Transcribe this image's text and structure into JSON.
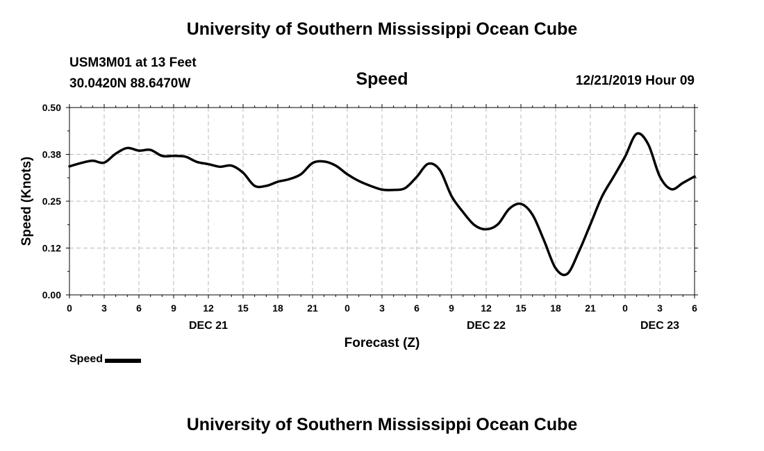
{
  "header": {
    "title": "University of Southern Mississippi Ocean Cube",
    "station_line1": "USM3M01 at 13 Feet",
    "station_line2": "30.0420N 88.6470W",
    "chart_title": "Speed",
    "timestamp": "12/21/2019 Hour 09"
  },
  "footer": {
    "title": "University of Southern Mississippi Ocean Cube"
  },
  "legend": {
    "label": "Speed"
  },
  "chart_data": {
    "type": "line",
    "title": "Speed",
    "xlabel": "Forecast (Z)",
    "ylabel": "Speed (Knots)",
    "xlim": [
      0,
      54
    ],
    "ylim": [
      0,
      0.5
    ],
    "y_ticks": [
      "0.00",
      "0.12",
      "0.25",
      "0.38",
      "0.50"
    ],
    "x_tick_labels": [
      "0",
      "3",
      "6",
      "9",
      "12",
      "15",
      "18",
      "21",
      "0",
      "3",
      "6",
      "9",
      "12",
      "15",
      "18",
      "21",
      "0",
      "3",
      "6"
    ],
    "day_labels": [
      {
        "label": "DEC 21",
        "hour": 12
      },
      {
        "label": "DEC 22",
        "hour": 36
      },
      {
        "label": "DEC 23",
        "hour": 51
      }
    ],
    "grid": true,
    "series": [
      {
        "name": "Speed",
        "color": "#000000",
        "x": [
          0,
          1,
          2,
          3,
          4,
          5,
          6,
          7,
          8,
          9,
          10,
          11,
          12,
          13,
          14,
          15,
          16,
          17,
          18,
          19,
          20,
          21,
          22,
          23,
          24,
          25,
          26,
          27,
          28,
          29,
          30,
          31,
          32,
          33,
          34,
          35,
          36,
          37,
          38,
          39,
          40,
          41,
          42,
          43,
          44,
          45,
          46,
          47,
          48,
          49,
          50,
          51,
          52,
          53,
          54
        ],
        "values": [
          0.343,
          0.352,
          0.358,
          0.353,
          0.377,
          0.392,
          0.385,
          0.387,
          0.371,
          0.371,
          0.369,
          0.355,
          0.349,
          0.342,
          0.345,
          0.326,
          0.291,
          0.291,
          0.302,
          0.309,
          0.322,
          0.352,
          0.356,
          0.345,
          0.322,
          0.304,
          0.291,
          0.281,
          0.28,
          0.285,
          0.315,
          0.35,
          0.333,
          0.264,
          0.221,
          0.186,
          0.175,
          0.188,
          0.23,
          0.243,
          0.214,
          0.145,
          0.071,
          0.056,
          0.115,
          0.188,
          0.262,
          0.315,
          0.369,
          0.43,
          0.402,
          0.316,
          0.282,
          0.299,
          0.316
        ]
      }
    ]
  }
}
